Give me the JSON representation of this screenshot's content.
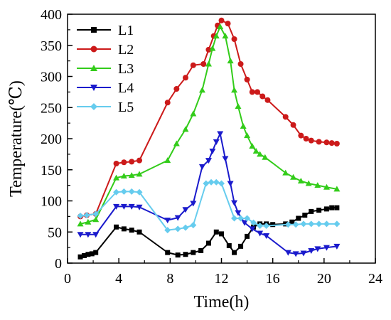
{
  "chart_data": {
    "type": "line",
    "xlabel": "Time(h)",
    "ylabel": "Temperature(℃)",
    "xlim": [
      0,
      24
    ],
    "ylim": [
      0,
      400
    ],
    "xticks": [
      "0",
      "4",
      "8",
      "12",
      "16",
      "20",
      "24"
    ],
    "yticks": [
      "0",
      "50",
      "100",
      "150",
      "200",
      "250",
      "300",
      "350",
      "400"
    ],
    "legend_position": "top-left",
    "grid": false,
    "series": [
      {
        "name": "L1",
        "color": "#000000",
        "marker": "square",
        "points": [
          [
            1.0,
            10
          ],
          [
            1.3,
            12
          ],
          [
            1.6,
            14
          ],
          [
            1.9,
            15
          ],
          [
            2.2,
            17
          ],
          [
            3.8,
            58
          ],
          [
            4.4,
            55
          ],
          [
            5.0,
            53
          ],
          [
            5.6,
            50
          ],
          [
            7.8,
            17
          ],
          [
            8.6,
            13
          ],
          [
            9.2,
            14
          ],
          [
            9.8,
            17
          ],
          [
            10.4,
            20
          ],
          [
            11.0,
            32
          ],
          [
            11.6,
            50
          ],
          [
            12.0,
            47
          ],
          [
            12.6,
            28
          ],
          [
            13.0,
            17
          ],
          [
            13.5,
            27
          ],
          [
            14.0,
            43
          ],
          [
            14.5,
            58
          ],
          [
            15.0,
            63
          ],
          [
            15.5,
            63
          ],
          [
            16.0,
            62
          ],
          [
            17.0,
            63
          ],
          [
            17.5,
            66
          ],
          [
            18.0,
            72
          ],
          [
            18.5,
            77
          ],
          [
            19.0,
            83
          ],
          [
            19.6,
            85
          ],
          [
            20.2,
            87
          ],
          [
            20.6,
            89
          ],
          [
            21.0,
            89
          ]
        ]
      },
      {
        "name": "L2",
        "color": "#cc1a1a",
        "marker": "circle",
        "points": [
          [
            1.0,
            75
          ],
          [
            1.5,
            77
          ],
          [
            2.2,
            79
          ],
          [
            3.8,
            160
          ],
          [
            4.4,
            162
          ],
          [
            5.0,
            163
          ],
          [
            5.6,
            165
          ],
          [
            7.8,
            258
          ],
          [
            8.5,
            280
          ],
          [
            9.2,
            298
          ],
          [
            9.8,
            318
          ],
          [
            10.6,
            320
          ],
          [
            11.0,
            343
          ],
          [
            11.4,
            365
          ],
          [
            11.7,
            382
          ],
          [
            12.0,
            390
          ],
          [
            12.5,
            385
          ],
          [
            13.0,
            360
          ],
          [
            13.5,
            320
          ],
          [
            14.0,
            295
          ],
          [
            14.4,
            275
          ],
          [
            14.8,
            275
          ],
          [
            15.2,
            268
          ],
          [
            15.6,
            262
          ],
          [
            17.0,
            235
          ],
          [
            17.6,
            222
          ],
          [
            18.2,
            205
          ],
          [
            18.6,
            200
          ],
          [
            19.0,
            197
          ],
          [
            19.6,
            195
          ],
          [
            20.2,
            194
          ],
          [
            20.6,
            193
          ],
          [
            21.0,
            192
          ]
        ]
      },
      {
        "name": "L3",
        "color": "#33cc1a",
        "marker": "triangle-up",
        "points": [
          [
            1.0,
            63
          ],
          [
            1.6,
            66
          ],
          [
            2.2,
            70
          ],
          [
            3.8,
            137
          ],
          [
            4.4,
            140
          ],
          [
            5.0,
            141
          ],
          [
            5.6,
            143
          ],
          [
            7.8,
            165
          ],
          [
            8.5,
            192
          ],
          [
            9.2,
            215
          ],
          [
            9.8,
            240
          ],
          [
            10.5,
            278
          ],
          [
            11.0,
            320
          ],
          [
            11.3,
            345
          ],
          [
            11.6,
            365
          ],
          [
            11.9,
            380
          ],
          [
            12.3,
            365
          ],
          [
            12.7,
            325
          ],
          [
            13.0,
            278
          ],
          [
            13.3,
            252
          ],
          [
            13.7,
            220
          ],
          [
            14.0,
            205
          ],
          [
            14.4,
            188
          ],
          [
            14.7,
            180
          ],
          [
            15.0,
            175
          ],
          [
            15.4,
            170
          ],
          [
            17.0,
            145
          ],
          [
            17.6,
            138
          ],
          [
            18.2,
            132
          ],
          [
            18.8,
            128
          ],
          [
            19.5,
            125
          ],
          [
            20.2,
            122
          ],
          [
            21.0,
            119
          ]
        ]
      },
      {
        "name": "L4",
        "color": "#1a1acc",
        "marker": "triangle-down",
        "points": [
          [
            1.0,
            46
          ],
          [
            1.6,
            46
          ],
          [
            2.2,
            46
          ],
          [
            3.8,
            91
          ],
          [
            4.4,
            91
          ],
          [
            5.0,
            91
          ],
          [
            5.6,
            90
          ],
          [
            7.8,
            69
          ],
          [
            8.6,
            73
          ],
          [
            9.2,
            86
          ],
          [
            9.8,
            96
          ],
          [
            10.5,
            155
          ],
          [
            11.0,
            165
          ],
          [
            11.3,
            180
          ],
          [
            11.6,
            195
          ],
          [
            11.9,
            208
          ],
          [
            12.3,
            168
          ],
          [
            12.7,
            128
          ],
          [
            13.0,
            97
          ],
          [
            13.3,
            81
          ],
          [
            13.8,
            65
          ],
          [
            14.4,
            55
          ],
          [
            15.0,
            48
          ],
          [
            15.5,
            44
          ],
          [
            17.2,
            17
          ],
          [
            17.8,
            15
          ],
          [
            18.4,
            16
          ],
          [
            19.0,
            20
          ],
          [
            19.5,
            23
          ],
          [
            20.2,
            25
          ],
          [
            21.0,
            27
          ]
        ]
      },
      {
        "name": "L5",
        "color": "#66ccee",
        "marker": "diamond",
        "points": [
          [
            1.0,
            76
          ],
          [
            1.5,
            77
          ],
          [
            2.2,
            79
          ],
          [
            3.8,
            114
          ],
          [
            4.4,
            115
          ],
          [
            5.0,
            115
          ],
          [
            5.6,
            114
          ],
          [
            7.8,
            53
          ],
          [
            8.6,
            55
          ],
          [
            9.2,
            57
          ],
          [
            9.8,
            61
          ],
          [
            10.8,
            128
          ],
          [
            11.2,
            130
          ],
          [
            11.6,
            130
          ],
          [
            12.0,
            128
          ],
          [
            13.0,
            72
          ],
          [
            13.5,
            72
          ],
          [
            14.0,
            72
          ],
          [
            14.5,
            65
          ],
          [
            15.0,
            60
          ],
          [
            15.5,
            60
          ],
          [
            17.2,
            62
          ],
          [
            17.8,
            62
          ],
          [
            18.4,
            63
          ],
          [
            19.0,
            63
          ],
          [
            19.6,
            63
          ],
          [
            20.2,
            63
          ],
          [
            21.0,
            63
          ]
        ]
      }
    ]
  }
}
